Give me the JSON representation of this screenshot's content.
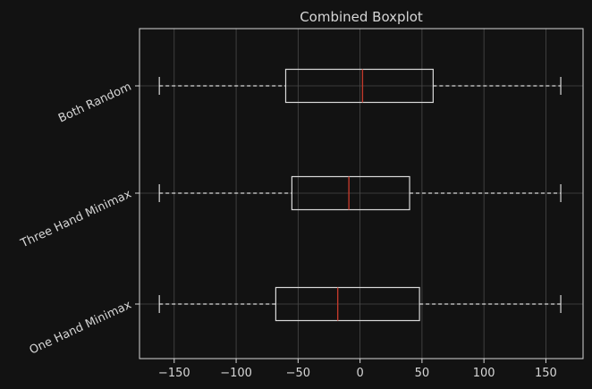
{
  "chart_data": {
    "type": "boxplot",
    "title": "Combined Boxplot",
    "xlabel": "",
    "ylabel": "",
    "orientation": "horizontal",
    "xlim": [
      -178,
      180
    ],
    "x_ticks": [
      -150,
      -100,
      -50,
      0,
      50,
      100,
      150
    ],
    "x_tick_labels": [
      "−150",
      "−100",
      "−50",
      "0",
      "50",
      "100",
      "150"
    ],
    "grid": true,
    "categories": [
      "Both Random",
      "Three Hand Minimax",
      "One Hand Minimax"
    ],
    "boxes": [
      {
        "label": "Both Random",
        "whisker_low": -162,
        "q1": -60,
        "median": 2,
        "q3": 59,
        "whisker_high": 162
      },
      {
        "label": "Three Hand Minimax",
        "whisker_low": -162,
        "q1": -55,
        "median": -9,
        "q3": 40,
        "whisker_high": 162
      },
      {
        "label": "One Hand Minimax",
        "whisker_low": -162,
        "q1": -68,
        "median": -18,
        "q3": 48,
        "whisker_high": 162
      }
    ],
    "colors": {
      "background": "#121212",
      "axes": "#d6d6d6",
      "box": "#d9d9d9",
      "median": "#c0392b",
      "grid": "#4a4a4a",
      "text": "#d6d6d6"
    }
  }
}
